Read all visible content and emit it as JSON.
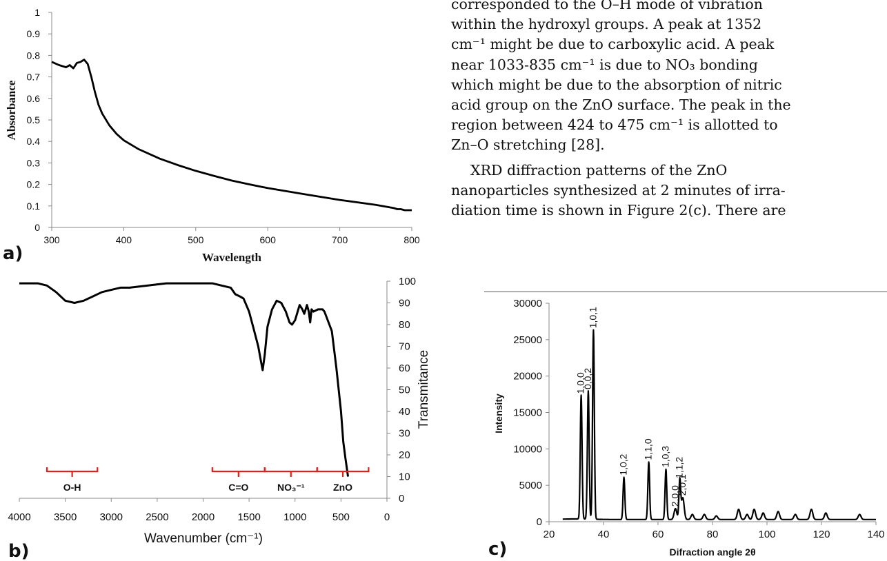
{
  "body_text": {
    "paragraph1": [
      "corresponded to the O–H mode of vibration",
      "within the hydroxyl groups. A peak at 1352",
      "cm⁻¹ might be due to carboxylic acid. A peak",
      "near 1033-835 cm⁻¹ is due to NO₃ bonding",
      "which might be due to the absorption of nitric",
      "acid group on the ZnO surface. The peak in the",
      "region between 424 to 475 cm⁻¹ is allotted to",
      "Zn–O stretching [28]."
    ],
    "paragraph2": [
      "XRD diffraction patterns of the ZnO",
      "nanoparticles synthesized at 2 minutes of irra-",
      "diation time is shown in Figure 2(c). There are"
    ]
  },
  "panel_labels": {
    "a": "a)",
    "b": "b)",
    "c": "c)"
  },
  "colors": {
    "line": "#000000",
    "bracket": "#e0201c",
    "axis": "#888888"
  },
  "chart_data": [
    {
      "id": "a",
      "type": "line",
      "xlabel": "Wavelength",
      "ylabel": "Absorbance",
      "xlim": [
        300,
        800
      ],
      "ylim": [
        0,
        1
      ],
      "x_ticks": [
        "300",
        "400",
        "500",
        "600",
        "700",
        "800"
      ],
      "y_ticks": [
        "0",
        "0.1",
        "0.2",
        "0.3",
        "0.4",
        "0.5",
        "0.6",
        "0.7",
        "0.8",
        "0.9",
        "1"
      ],
      "x": [
        300,
        310,
        320,
        325,
        330,
        335,
        340,
        345,
        350,
        355,
        360,
        365,
        370,
        380,
        390,
        400,
        420,
        450,
        475,
        500,
        525,
        550,
        575,
        600,
        650,
        700,
        750,
        775,
        780,
        785,
        790,
        800
      ],
      "y": [
        0.77,
        0.755,
        0.745,
        0.755,
        0.74,
        0.765,
        0.77,
        0.78,
        0.76,
        0.7,
        0.63,
        0.57,
        0.53,
        0.475,
        0.435,
        0.405,
        0.365,
        0.32,
        0.29,
        0.263,
        0.24,
        0.218,
        0.2,
        0.183,
        0.155,
        0.128,
        0.105,
        0.09,
        0.085,
        0.085,
        0.08,
        0.08
      ]
    },
    {
      "id": "b",
      "type": "line",
      "xlabel": "Wavenumber (cm⁻¹)",
      "ylabel": "Transmitance",
      "xlim": [
        4000,
        0
      ],
      "ylim": [
        0,
        100
      ],
      "x_ticks": [
        "4000",
        "3500",
        "3000",
        "2500",
        "2000",
        "1500",
        "1000",
        "500",
        "0"
      ],
      "y_ticks": [
        "0",
        "10",
        "20",
        "30",
        "40",
        "50",
        "60",
        "70",
        "80",
        "90",
        "100"
      ],
      "x": [
        4000,
        3800,
        3700,
        3600,
        3500,
        3400,
        3300,
        3200,
        3100,
        3000,
        2900,
        2800,
        2600,
        2400,
        2200,
        2100,
        2000,
        1900,
        1800,
        1700,
        1650,
        1600,
        1560,
        1500,
        1450,
        1400,
        1370,
        1352,
        1330,
        1300,
        1250,
        1200,
        1150,
        1100,
        1060,
        1033,
        1000,
        950,
        920,
        900,
        870,
        850,
        835,
        820,
        800,
        750,
        700,
        680,
        600,
        550,
        500,
        475,
        450,
        430,
        424
      ],
      "y": [
        99,
        99,
        98,
        95,
        91,
        90,
        91,
        93,
        95,
        96,
        97,
        97,
        98,
        99,
        99,
        99,
        99,
        99,
        98,
        97,
        94,
        93,
        92,
        86,
        78,
        70,
        63,
        59,
        66,
        79,
        87,
        91,
        90,
        86,
        81,
        80,
        82,
        89,
        87,
        85,
        89,
        86,
        81,
        87,
        86,
        87,
        87,
        86,
        77,
        60,
        40,
        26,
        18,
        12,
        10
      ]
    },
    {
      "id": "c",
      "type": "line",
      "xlabel": "Difraction angle 2θ",
      "ylabel": "Intensity",
      "xlim": [
        20,
        140
      ],
      "ylim": [
        0,
        30000
      ],
      "x_ticks": [
        "20",
        "40",
        "60",
        "80",
        "100",
        "120",
        "140"
      ],
      "y_ticks": [
        "0",
        "5000",
        "10000",
        "15000",
        "20000",
        "25000",
        "30000"
      ],
      "peaks": [
        {
          "x": 31.8,
          "y": 17000,
          "label": "1,0,0"
        },
        {
          "x": 34.4,
          "y": 17600,
          "label": "0,0,2"
        },
        {
          "x": 36.3,
          "y": 26000,
          "label": "1,0,1"
        },
        {
          "x": 47.5,
          "y": 5800,
          "label": "1,0,2"
        },
        {
          "x": 56.6,
          "y": 7900,
          "label": "1,1,0"
        },
        {
          "x": 62.9,
          "y": 6900,
          "label": "1,0,3"
        },
        {
          "x": 66.4,
          "y": 1500,
          "label": "2,0,0"
        },
        {
          "x": 68.0,
          "y": 5400,
          "label": "1,1,2"
        },
        {
          "x": 69.1,
          "y": 3000,
          "label": "2,0,1"
        },
        {
          "x": 72.6,
          "y": 700,
          "label": ""
        },
        {
          "x": 77.0,
          "y": 700,
          "label": ""
        },
        {
          "x": 81.4,
          "y": 500,
          "label": ""
        },
        {
          "x": 89.6,
          "y": 1400,
          "label": ""
        },
        {
          "x": 92.7,
          "y": 700,
          "label": ""
        },
        {
          "x": 95.3,
          "y": 1400,
          "label": ""
        },
        {
          "x": 98.6,
          "y": 900,
          "label": ""
        },
        {
          "x": 104.1,
          "y": 1100,
          "label": ""
        },
        {
          "x": 110.4,
          "y": 700,
          "label": ""
        },
        {
          "x": 116.3,
          "y": 1400,
          "label": ""
        },
        {
          "x": 121.6,
          "y": 900,
          "label": ""
        },
        {
          "x": 134.0,
          "y": 700,
          "label": ""
        }
      ],
      "baseline": 300,
      "x_start": 25,
      "x_end": 140
    }
  ],
  "ir_regions": [
    {
      "label": "O-H",
      "from": 3700,
      "to": 3150
    },
    {
      "label": "C=O",
      "from": 1900,
      "to": 1330
    },
    {
      "label": "NO₃⁻¹",
      "from": 1330,
      "to": 760
    },
    {
      "label": "ZnO",
      "from": 760,
      "to": 200
    }
  ]
}
